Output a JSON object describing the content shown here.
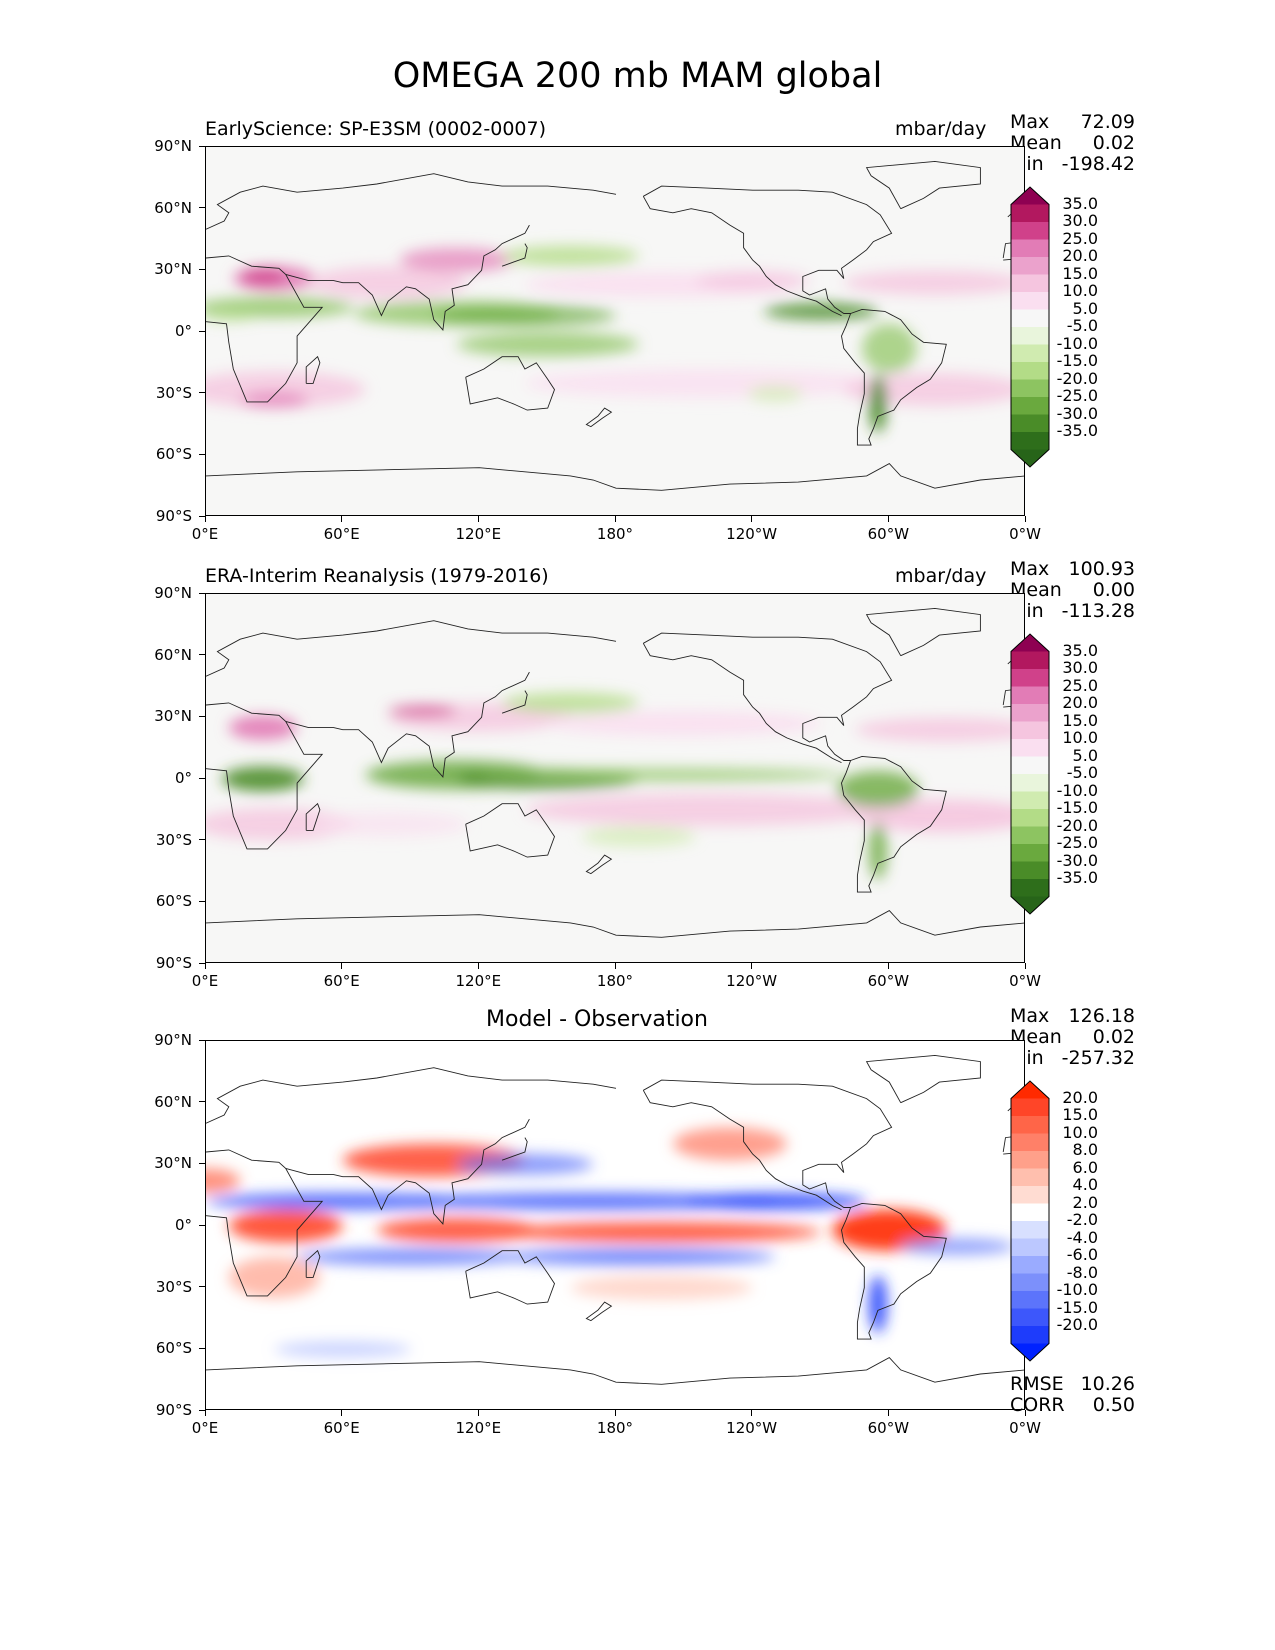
{
  "figure_title": "OMEGA 200 mb MAM global",
  "chart_data": [
    {
      "type": "heatmap",
      "title": "EarlyScience: SP-E3SM (0002-0007)",
      "units": "mbar/day",
      "stats": {
        "max": "72.09",
        "mean": "0.02",
        "min": "-198.42"
      },
      "x_ticks": [
        "0°E",
        "60°E",
        "120°E",
        "180°",
        "120°W",
        "60°W",
        "0°W"
      ],
      "y_ticks": [
        "90°N",
        "60°N",
        "30°N",
        "0°",
        "30°S",
        "60°S",
        "90°S"
      ],
      "xlim": [
        0,
        360
      ],
      "ylim": [
        -90,
        90
      ],
      "colorbar_levels": [
        "35.0",
        "30.0",
        "25.0",
        "20.0",
        "15.0",
        "10.0",
        "5.0",
        "-5.0",
        "-10.0",
        "-15.0",
        "-20.0",
        "-25.0",
        "-30.0",
        "-35.0"
      ],
      "colorbar_colors": [
        "#8e0152",
        "#b2185f",
        "#d0418a",
        "#e27cb6",
        "#eba2cc",
        "#f5c5df",
        "#fadff0",
        "#f7f7f7",
        "#e9f5dc",
        "#d0ebb0",
        "#b3dc87",
        "#8dc461",
        "#6aa93e",
        "#4a8c28",
        "#2e6e1b",
        "#276419"
      ]
    },
    {
      "type": "heatmap",
      "title": "ERA-Interim Reanalysis (1979-2016)",
      "units": "mbar/day",
      "stats": {
        "max": "100.93",
        "mean": "0.00",
        "min": "-113.28"
      },
      "x_ticks": [
        "0°E",
        "60°E",
        "120°E",
        "180°",
        "120°W",
        "60°W",
        "0°W"
      ],
      "y_ticks": [
        "90°N",
        "60°N",
        "30°N",
        "0°",
        "30°S",
        "60°S",
        "90°S"
      ],
      "xlim": [
        0,
        360
      ],
      "ylim": [
        -90,
        90
      ],
      "colorbar_levels": [
        "35.0",
        "30.0",
        "25.0",
        "20.0",
        "15.0",
        "10.0",
        "5.0",
        "-5.0",
        "-10.0",
        "-15.0",
        "-20.0",
        "-25.0",
        "-30.0",
        "-35.0"
      ],
      "colorbar_colors": [
        "#8e0152",
        "#b2185f",
        "#d0418a",
        "#e27cb6",
        "#eba2cc",
        "#f5c5df",
        "#fadff0",
        "#f7f7f7",
        "#e9f5dc",
        "#d0ebb0",
        "#b3dc87",
        "#8dc461",
        "#6aa93e",
        "#4a8c28",
        "#2e6e1b",
        "#276419"
      ]
    },
    {
      "type": "heatmap",
      "title": "Model - Observation",
      "stats": {
        "max": "126.18",
        "mean": "0.02",
        "min": "-257.32"
      },
      "metrics": {
        "rmse_label": "RMSE",
        "rmse": "10.26",
        "corr_label": "CORR",
        "corr": "0.50"
      },
      "x_ticks": [
        "0°E",
        "60°E",
        "120°E",
        "180°",
        "120°W",
        "60°W",
        "0°W"
      ],
      "y_ticks": [
        "90°N",
        "60°N",
        "30°N",
        "0°",
        "30°S",
        "60°S",
        "90°S"
      ],
      "xlim": [
        0,
        360
      ],
      "ylim": [
        -90,
        90
      ],
      "colorbar_levels": [
        "20.0",
        "15.0",
        "10.0",
        "8.0",
        "6.0",
        "4.0",
        "2.0",
        "-2.0",
        "-4.0",
        "-6.0",
        "-8.0",
        "-10.0",
        "-15.0",
        "-20.0"
      ],
      "colorbar_colors": [
        "#ff2a00",
        "#ff4528",
        "#ff6548",
        "#ff8068",
        "#ffa08a",
        "#ffbfae",
        "#ffdcd2",
        "#ffffff",
        "#d8e0ff",
        "#bcc8ff",
        "#9aabff",
        "#7c90fb",
        "#5c74fb",
        "#3d57fb",
        "#1e3cfb",
        "#0022ff"
      ]
    }
  ],
  "labels": {
    "max": "Max",
    "mean": "Mean",
    "min": "Min"
  }
}
